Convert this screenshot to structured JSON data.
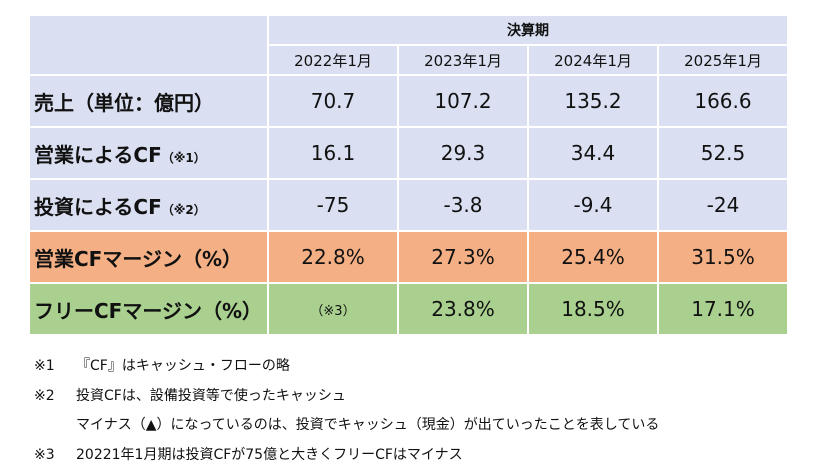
{
  "table": {
    "group_header": "決算期",
    "columns": [
      "2022年1月",
      "2023年1月",
      "2024年1月",
      "2025年1月"
    ],
    "rows": [
      {
        "label": "売上（単位：億円）",
        "note": "",
        "values": [
          "70.7",
          "107.2",
          "135.2",
          "166.6"
        ]
      },
      {
        "label": "営業によるCF",
        "note": "（※1）",
        "values": [
          "16.1",
          "29.3",
          "34.4",
          "52.5"
        ]
      },
      {
        "label": "投資によるCF",
        "note": "（※2）",
        "values": [
          "-75",
          "-3.8",
          "-9.4",
          "-24"
        ]
      },
      {
        "label": "営業CFマージン（%）",
        "note": "",
        "values": [
          "22.8%",
          "27.3%",
          "25.4%",
          "31.5%"
        ]
      },
      {
        "label": "フリーCFマージン（%）",
        "note": "",
        "values": [
          "（※3）",
          "23.8%",
          "18.5%",
          "17.1%"
        ]
      }
    ]
  },
  "colors": {
    "base": "#dae0f2",
    "operating_margin": "#f4b084",
    "free_margin": "#a9d08e"
  },
  "notes": [
    {
      "mark": "※1",
      "text": "『CF』はキャッシュ・フローの略"
    },
    {
      "mark": "※2",
      "text": "投資CFは、設備投資等で使ったキャッシュ"
    },
    {
      "mark": "",
      "text": "マイナス（▲）になっているのは、投資でキャッシュ（現金）が出ていったことを表している"
    },
    {
      "mark": "※3",
      "text": "20221年1月期は投資CFが75億と大きくフリーCFはマイナス"
    }
  ]
}
